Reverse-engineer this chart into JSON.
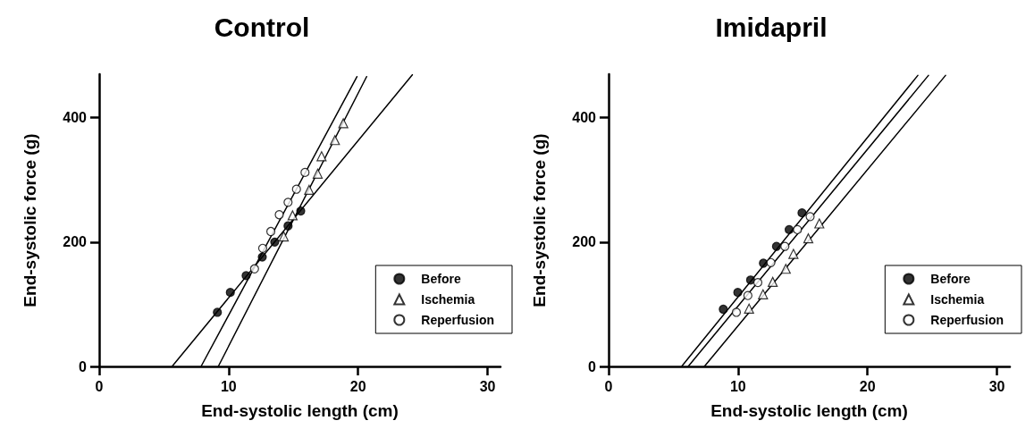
{
  "chart_data": [
    {
      "type": "scatter",
      "title": "Control",
      "xlabel": "End-systolic length (cm)",
      "ylabel": "End-systolic force (g)",
      "xlim": [
        0,
        31
      ],
      "xticks": [
        0,
        10,
        20,
        30
      ],
      "ylim": [
        0,
        470
      ],
      "yticks": [
        0,
        200,
        400
      ],
      "grid": false,
      "legend": "bottom right",
      "series": [
        {
          "name": "Before",
          "color": "#000000",
          "marker": "circle",
          "x": [
            9.13,
            10.13,
            11.35,
            12.6,
            13.56,
            14.59,
            15.57
          ],
          "values": [
            87,
            119,
            146,
            176,
            200,
            226,
            250
          ]
        },
        {
          "name": "Ischemia",
          "color": "#ffffff",
          "marker": "triangle",
          "x": [
            14.26,
            14.94,
            16.22,
            16.88,
            17.18,
            18.21,
            18.86
          ],
          "values": [
            209,
            243,
            284,
            310,
            338,
            364,
            391
          ]
        },
        {
          "name": "Reperfusion",
          "color": "#ffffff",
          "marker": "circle",
          "x": [
            12.0,
            12.63,
            13.26,
            13.91,
            14.59,
            15.24,
            15.9
          ],
          "values": [
            157,
            190,
            217,
            244,
            264,
            285,
            312
          ]
        },
        {
          "type": "line",
          "color": "#000000",
          "marker": "none",
          "x": [
            5.63,
            24.19
          ],
          "values": [
            0,
            469
          ]
        },
        {
          "type": "line",
          "color": "#000000",
          "marker": "none",
          "x": [
            9.2,
            20.66
          ],
          "values": [
            0,
            466
          ]
        },
        {
          "type": "line",
          "color": "#000000",
          "marker": "none",
          "x": [
            7.87,
            19.91
          ],
          "values": [
            0,
            466
          ]
        }
      ]
    },
    {
      "type": "scatter",
      "title": "Imidapril",
      "xlabel": "End-systolic length (cm)",
      "ylabel": "End-systolic force (g)",
      "xlim": [
        0,
        31
      ],
      "xticks": [
        0,
        10,
        20,
        30
      ],
      "ylim": [
        0,
        470
      ],
      "yticks": [
        0,
        200,
        400
      ],
      "grid": false,
      "legend": "bottom right",
      "series": [
        {
          "name": "Before",
          "color": "#000000",
          "marker": "circle",
          "x": [
            8.86,
            9.98,
            10.97,
            11.96,
            12.97,
            13.95,
            14.94
          ],
          "values": [
            92,
            119,
            139,
            166,
            193,
            220,
            247
          ]
        },
        {
          "name": "Ischemia",
          "color": "#ffffff",
          "marker": "triangle",
          "x": [
            10.85,
            11.93,
            12.68,
            13.69,
            14.28,
            15.43,
            16.28
          ],
          "values": [
            93,
            116,
            136,
            157,
            181,
            206,
            230
          ]
        },
        {
          "name": "Reperfusion",
          "color": "#ffffff",
          "marker": "circle",
          "x": [
            9.87,
            10.76,
            11.53,
            12.54,
            13.62,
            14.59,
            15.57
          ],
          "values": [
            87,
            114,
            135,
            167,
            193,
            220,
            241
          ]
        },
        {
          "type": "line",
          "color": "#000000",
          "marker": "none",
          "x": [
            5.64,
            23.89
          ],
          "values": [
            0,
            468
          ]
        },
        {
          "type": "line",
          "color": "#000000",
          "marker": "none",
          "x": [
            7.4,
            26.03
          ],
          "values": [
            0,
            468
          ]
        },
        {
          "type": "line",
          "color": "#000000",
          "marker": "none",
          "x": [
            6.15,
            24.71
          ],
          "values": [
            0,
            468
          ]
        }
      ]
    }
  ]
}
